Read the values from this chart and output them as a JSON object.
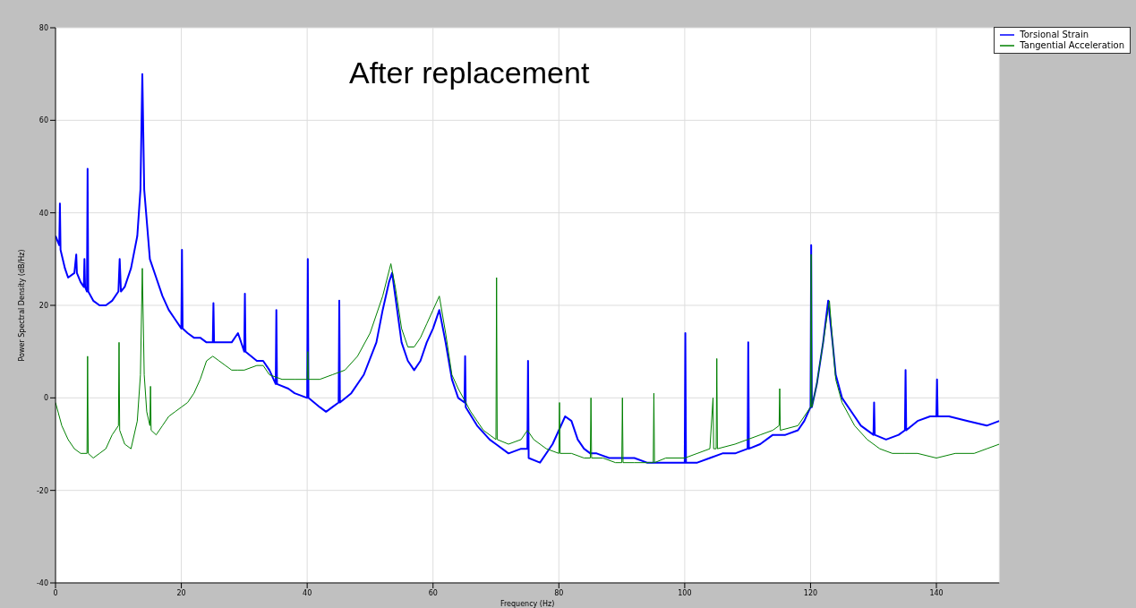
{
  "chart_data": {
    "type": "line",
    "xlabel": "Frequency (Hz)",
    "ylabel": "Power Spectral Density (dB/Hz)",
    "annotations": [
      "After replacement"
    ],
    "xlim": [
      0,
      150
    ],
    "xticks": [
      0,
      20,
      40,
      60,
      80,
      100,
      120,
      140
    ],
    "ylim": [
      -40,
      80
    ],
    "yticks": [
      -40,
      -20,
      0,
      20,
      40,
      60,
      80
    ],
    "grid": true,
    "legend": "top right",
    "marker": "none",
    "line_style": "solid",
    "series": [
      {
        "name": "Torsional Strain",
        "color": "#0000ff",
        "x": [
          0,
          0.6,
          0.7,
          0.8,
          1.5,
          2,
          3,
          3.3,
          3.4,
          4,
          4.5,
          4.6,
          4.7,
          5,
          5.1,
          5.2,
          6,
          7,
          8,
          9,
          10,
          10.2,
          10.4,
          11,
          12,
          13,
          13.5,
          13.8,
          14.1,
          15,
          16,
          17,
          18,
          19,
          20,
          20.1,
          20.2,
          21,
          22,
          23,
          24,
          25,
          25.1,
          25.2,
          27,
          28,
          29,
          30,
          30.1,
          30.2,
          32,
          33,
          34,
          35,
          35.1,
          35.2,
          37,
          38,
          40,
          40.1,
          40.2,
          42,
          43,
          44,
          45,
          45.1,
          45.2,
          47,
          49,
          51,
          52,
          53,
          53.5,
          54,
          55,
          56,
          57,
          58,
          59,
          60,
          61,
          62,
          63,
          64,
          65,
          65.1,
          65.2,
          67,
          69,
          70,
          72,
          74,
          75,
          75.1,
          75.2,
          77,
          79,
          80,
          81,
          82,
          83,
          84,
          85,
          86,
          88,
          90,
          92,
          94,
          96,
          98,
          100,
          100.1,
          100.2,
          102,
          104,
          106,
          108,
          110,
          110.1,
          110.2,
          112,
          114,
          116,
          118,
          119,
          120,
          120.1,
          120.2,
          121,
          122,
          122.8,
          123.5,
          124,
          125,
          127,
          128,
          130,
          130.1,
          130.2,
          132,
          134,
          135,
          135.1,
          135.2,
          137,
          139,
          140,
          140.1,
          140.2,
          142,
          145,
          148,
          150
        ],
        "values": [
          35,
          33,
          42,
          32,
          28,
          26,
          27,
          31,
          27,
          25,
          24,
          30,
          24,
          23,
          49.5,
          23,
          21,
          20,
          20,
          21,
          23,
          30,
          23,
          24,
          28,
          35,
          45,
          70,
          45,
          30,
          26,
          22,
          19,
          17,
          15,
          32,
          15,
          14,
          13,
          13,
          12,
          12,
          20.5,
          12,
          12,
          12,
          14,
          10,
          22.5,
          10,
          8,
          8,
          6,
          3,
          19,
          3,
          2,
          1,
          0,
          30,
          0,
          -2,
          -3,
          -2,
          -1,
          21,
          -1,
          1,
          5,
          12,
          19,
          25,
          27,
          22,
          12,
          8,
          6,
          8,
          12,
          15,
          19,
          12,
          4,
          0,
          -1,
          9,
          -2,
          -6,
          -9,
          -10,
          -12,
          -11,
          -11,
          8,
          -13,
          -14,
          -10,
          -7,
          -4,
          -5,
          -9,
          -11,
          -12,
          -12,
          -13,
          -13,
          -13,
          -14,
          -14,
          -14,
          -14,
          14,
          -14,
          -14,
          -13,
          -12,
          -12,
          -11,
          12,
          -11,
          -10,
          -8,
          -8,
          -7,
          -5,
          -2,
          33,
          -2,
          3,
          12,
          21,
          12,
          5,
          0,
          -4,
          -6,
          -8,
          -1,
          -8,
          -9,
          -8,
          -7,
          6,
          -7,
          -5,
          -4,
          -4,
          4,
          -4,
          -4,
          -5,
          -6,
          -5
        ]
      },
      {
        "name": "Tangential Acceleration",
        "color": "#008000",
        "x": [
          0,
          1,
          2,
          3,
          4,
          5,
          5.1,
          5.2,
          6,
          7,
          8,
          9,
          10,
          10.1,
          10.2,
          11,
          12,
          13,
          13.5,
          13.8,
          14.1,
          14.5,
          15,
          15.1,
          15.2,
          16,
          17,
          18,
          19,
          20,
          21,
          22,
          23,
          24,
          25,
          26,
          27,
          28,
          29,
          30,
          32,
          33,
          34,
          36,
          38,
          40,
          40.1,
          40.2,
          42,
          44,
          46,
          48,
          50,
          52,
          53.3,
          54,
          55,
          56,
          57,
          58,
          59,
          60,
          61,
          62,
          63,
          64,
          66,
          68,
          70,
          70.1,
          70.2,
          72,
          74,
          75,
          76,
          78,
          80,
          80.1,
          80.2,
          82,
          84,
          85,
          85.1,
          85.2,
          87,
          89,
          90,
          90.1,
          90.2,
          92,
          95,
          95.1,
          95.2,
          97,
          100,
          102,
          104,
          104.5,
          104.6,
          105,
          105.1,
          105.2,
          108,
          110,
          112,
          114,
          115,
          115.1,
          115.2,
          118,
          119,
          120,
          120.1,
          120.2,
          121,
          122,
          123,
          123.5,
          124,
          125,
          127,
          129,
          131,
          133,
          135,
          137,
          140,
          143,
          146,
          148,
          150
        ],
        "values": [
          -1,
          -6,
          -9,
          -11,
          -12,
          -12,
          9,
          -12,
          -13,
          -12,
          -11,
          -8,
          -6,
          12,
          -7,
          -10,
          -11,
          -5,
          5,
          28,
          5,
          -3,
          -6,
          2.5,
          -7,
          -8,
          -6,
          -4,
          -3,
          -2,
          -1,
          1,
          4,
          8,
          9,
          8,
          7,
          6,
          6,
          6,
          7,
          7,
          5,
          4,
          4,
          4,
          10,
          4,
          4,
          5,
          6,
          9,
          14,
          22,
          29,
          24,
          15,
          11,
          11,
          13,
          16,
          19,
          22,
          14,
          5,
          2,
          -3,
          -7,
          -9,
          26,
          -9,
          -10,
          -9,
          -7,
          -9,
          -11,
          -12,
          -1,
          -12,
          -12,
          -13,
          -13,
          0,
          -13,
          -13,
          -14,
          -14,
          0,
          -14,
          -14,
          -14,
          1,
          -14,
          -13,
          -13,
          -12,
          -11,
          0,
          -11,
          -11,
          8.5,
          -11,
          -10,
          -9,
          -8,
          -7,
          -6,
          2,
          -7,
          -6,
          -4,
          -2,
          31,
          -2,
          3,
          12,
          21,
          12,
          4,
          -1,
          -6,
          -9,
          -11,
          -12,
          -12,
          -12,
          -13,
          -12,
          -12,
          -11,
          -10
        ]
      }
    ]
  }
}
